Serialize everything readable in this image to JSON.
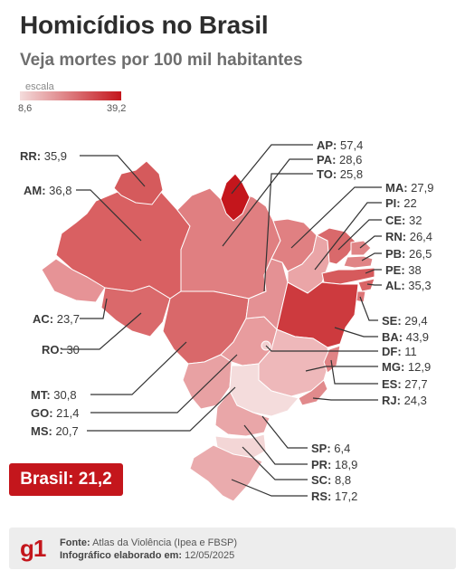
{
  "title": "Homicídios no Brasil",
  "subtitle": "Veja mortes por 100 mil habitantes",
  "scale": {
    "label": "escala",
    "min": "8,6",
    "max": "39,2",
    "min_color": "#f4dcdc",
    "max_color": "#c4161c"
  },
  "states": [
    {
      "abbr": "RR",
      "value": "35,9"
    },
    {
      "abbr": "AM",
      "value": "36,8"
    },
    {
      "abbr": "AC",
      "value": "23,7"
    },
    {
      "abbr": "RO",
      "value": "30"
    },
    {
      "abbr": "MT",
      "value": "30,8"
    },
    {
      "abbr": "GO",
      "value": "21,4"
    },
    {
      "abbr": "MS",
      "value": "20,7"
    },
    {
      "abbr": "AP",
      "value": "57,4"
    },
    {
      "abbr": "PA",
      "value": "28,6"
    },
    {
      "abbr": "TO",
      "value": "25,8"
    },
    {
      "abbr": "MA",
      "value": "27,9"
    },
    {
      "abbr": "PI",
      "value": "22"
    },
    {
      "abbr": "CE",
      "value": "32"
    },
    {
      "abbr": "RN",
      "value": "26,4"
    },
    {
      "abbr": "PB",
      "value": "26,5"
    },
    {
      "abbr": "PE",
      "value": "38"
    },
    {
      "abbr": "AL",
      "value": "35,3"
    },
    {
      "abbr": "SE",
      "value": "29,4"
    },
    {
      "abbr": "BA",
      "value": "43,9"
    },
    {
      "abbr": "DF",
      "value": "11"
    },
    {
      "abbr": "MG",
      "value": "12,9"
    },
    {
      "abbr": "ES",
      "value": "27,7"
    },
    {
      "abbr": "RJ",
      "value": "24,3"
    },
    {
      "abbr": "SP",
      "value": "6,4"
    },
    {
      "abbr": "PR",
      "value": "18,9"
    },
    {
      "abbr": "SC",
      "value": "8,8"
    },
    {
      "abbr": "RS",
      "value": "17,2"
    }
  ],
  "national": {
    "label": "Brasil:",
    "value": "21,2"
  },
  "footer": {
    "logo": "g1",
    "source_label": "Fonte:",
    "source_text": "Atlas da Violência (Ipea e FBSP)",
    "made_label": "Infográfico elaborado em:",
    "made_text": "12/05/2025"
  }
}
